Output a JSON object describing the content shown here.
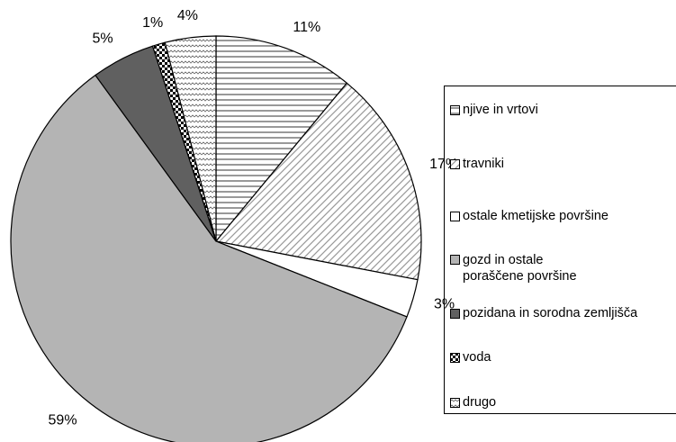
{
  "chart_data": {
    "type": "pie",
    "categories": [
      "njive in vrtovi",
      "travniki",
      "ostale kmetijske površine",
      "gozd in ostale poraščene površine",
      "pozidana in sorodna zemljišča",
      "voda",
      "drugo"
    ],
    "values": [
      11,
      17,
      3,
      59,
      5,
      1,
      4
    ],
    "value_labels": [
      "11%",
      "17%",
      "3%",
      "59%",
      "5%",
      "1%",
      "4%"
    ]
  }
}
